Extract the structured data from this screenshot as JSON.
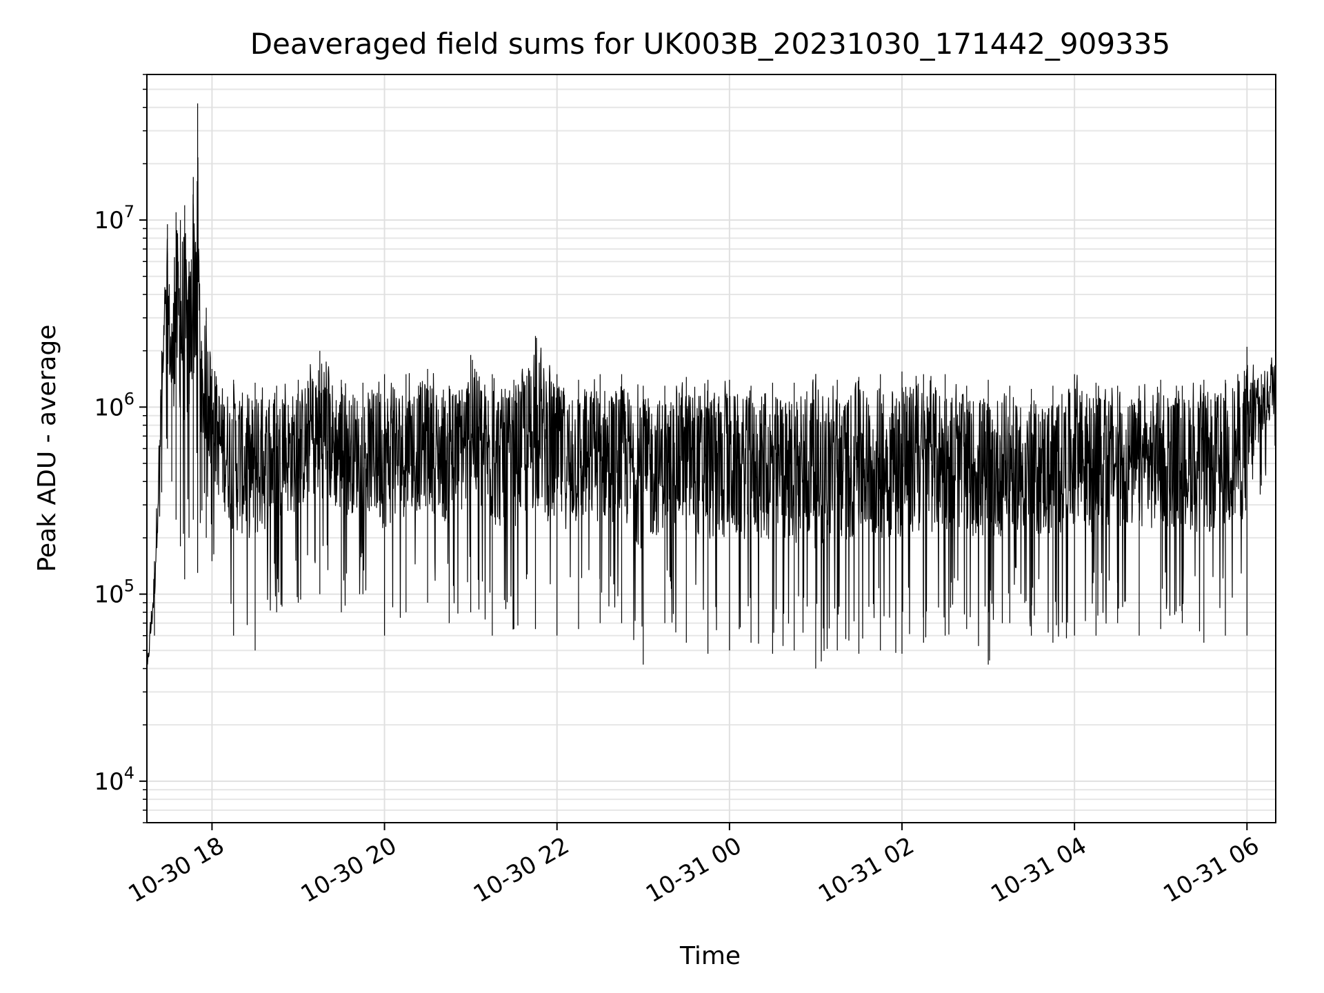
{
  "chart_data": {
    "type": "line",
    "title": "Deaveraged field sums for UK003B_20231030_171442_909335",
    "xlabel": "Time",
    "ylabel": "Peak ADU - average",
    "yscale": "log",
    "ylim": [
      6000,
      60000000
    ],
    "xlim": [
      "2023-10-30T17:14:42",
      "2023-10-31T06:20:00"
    ],
    "grid": true,
    "legend": "none",
    "line_color": "#000000",
    "x_ticks": [
      {
        "value": "2023-10-30T18:00",
        "label": "10-30 18"
      },
      {
        "value": "2023-10-30T20:00",
        "label": "10-30 20"
      },
      {
        "value": "2023-10-30T22:00",
        "label": "10-30 22"
      },
      {
        "value": "2023-10-31T00:00",
        "label": "10-31 00"
      },
      {
        "value": "2023-10-31T02:00",
        "label": "10-31 02"
      },
      {
        "value": "2023-10-31T04:00",
        "label": "10-31 04"
      },
      {
        "value": "2023-10-31T06:00",
        "label": "10-31 06"
      }
    ],
    "y_ticks": [
      {
        "value": 10000,
        "base": "10",
        "exp": "4"
      },
      {
        "value": 100000,
        "base": "10",
        "exp": "5"
      },
      {
        "value": 1000000,
        "base": "10",
        "exp": "6"
      },
      {
        "value": 10000000,
        "base": "10",
        "exp": "7"
      }
    ],
    "series": [
      {
        "x": [
          "2023-10-30T17:14:42",
          "2023-10-30T17:20",
          "2023-10-30T17:25",
          "2023-10-30T17:29",
          "2023-10-30T17:32",
          "2023-10-30T17:35",
          "2023-10-30T17:38",
          "2023-10-30T17:41",
          "2023-10-30T17:44",
          "2023-10-30T17:47",
          "2023-10-30T17:50",
          "2023-10-30T17:53",
          "2023-10-30T17:56",
          "2023-10-30T18:00",
          "2023-10-30T18:15",
          "2023-10-30T18:30",
          "2023-10-30T18:45",
          "2023-10-30T19:00",
          "2023-10-30T19:15",
          "2023-10-30T19:30",
          "2023-10-30T19:45",
          "2023-10-30T20:00",
          "2023-10-30T20:15",
          "2023-10-30T20:30",
          "2023-10-30T20:45",
          "2023-10-30T21:00",
          "2023-10-30T21:15",
          "2023-10-30T21:30",
          "2023-10-30T21:45",
          "2023-10-30T22:00",
          "2023-10-30T22:15",
          "2023-10-30T22:30",
          "2023-10-30T22:45",
          "2023-10-30T23:00",
          "2023-10-30T23:15",
          "2023-10-30T23:30",
          "2023-10-30T23:45",
          "2023-10-31T00:00",
          "2023-10-31T00:15",
          "2023-10-31T00:30",
          "2023-10-31T00:45",
          "2023-10-31T01:00",
          "2023-10-31T01:15",
          "2023-10-31T01:30",
          "2023-10-31T01:45",
          "2023-10-31T02:00",
          "2023-10-31T02:15",
          "2023-10-31T02:30",
          "2023-10-31T02:45",
          "2023-10-31T03:00",
          "2023-10-31T03:15",
          "2023-10-31T03:30",
          "2023-10-31T03:45",
          "2023-10-31T04:00",
          "2023-10-31T04:15",
          "2023-10-31T04:30",
          "2023-10-31T04:45",
          "2023-10-31T05:00",
          "2023-10-31T05:15",
          "2023-10-31T05:30",
          "2023-10-31T05:45",
          "2023-10-31T06:00",
          "2023-10-31T06:10",
          "2023-10-31T06:20"
        ],
        "y_high": [
          40000,
          150000,
          2000000,
          9500000,
          2800000,
          11000000,
          10000000,
          12000000,
          6000000,
          17000000,
          42000000,
          2000000,
          3400000,
          1600000,
          1400000,
          1350000,
          1300000,
          1400000,
          2000000,
          1400000,
          1350000,
          1500000,
          1500000,
          1600000,
          1300000,
          1900000,
          1500000,
          1400000,
          2400000,
          1500000,
          1400000,
          1500000,
          1500000,
          1300000,
          1300000,
          1450000,
          1400000,
          1400000,
          1300000,
          1350000,
          1350000,
          1500000,
          1400000,
          1450000,
          1500000,
          1550000,
          1500000,
          1500000,
          1300000,
          1400000,
          1300000,
          1250000,
          1300000,
          1500000,
          1350000,
          1300000,
          1300000,
          1400000,
          1300000,
          1400000,
          1400000,
          2100000,
          1500000,
          2400000
        ],
        "y_low": [
          32000,
          60000,
          350000,
          600000,
          400000,
          250000,
          180000,
          120000,
          200000,
          250000,
          130000,
          280000,
          200000,
          150000,
          60000,
          50000,
          80000,
          90000,
          100000,
          80000,
          100000,
          60000,
          80000,
          90000,
          70000,
          80000,
          60000,
          65000,
          65000,
          60000,
          65000,
          70000,
          70000,
          42000,
          70000,
          55000,
          48000,
          50000,
          55000,
          48000,
          50000,
          40000,
          50000,
          48000,
          50000,
          48000,
          55000,
          60000,
          65000,
          42000,
          70000,
          60000,
          55000,
          60000,
          60000,
          70000,
          60000,
          65000,
          70000,
          55000,
          60000,
          60000,
          380000,
          500000
        ]
      }
    ]
  }
}
